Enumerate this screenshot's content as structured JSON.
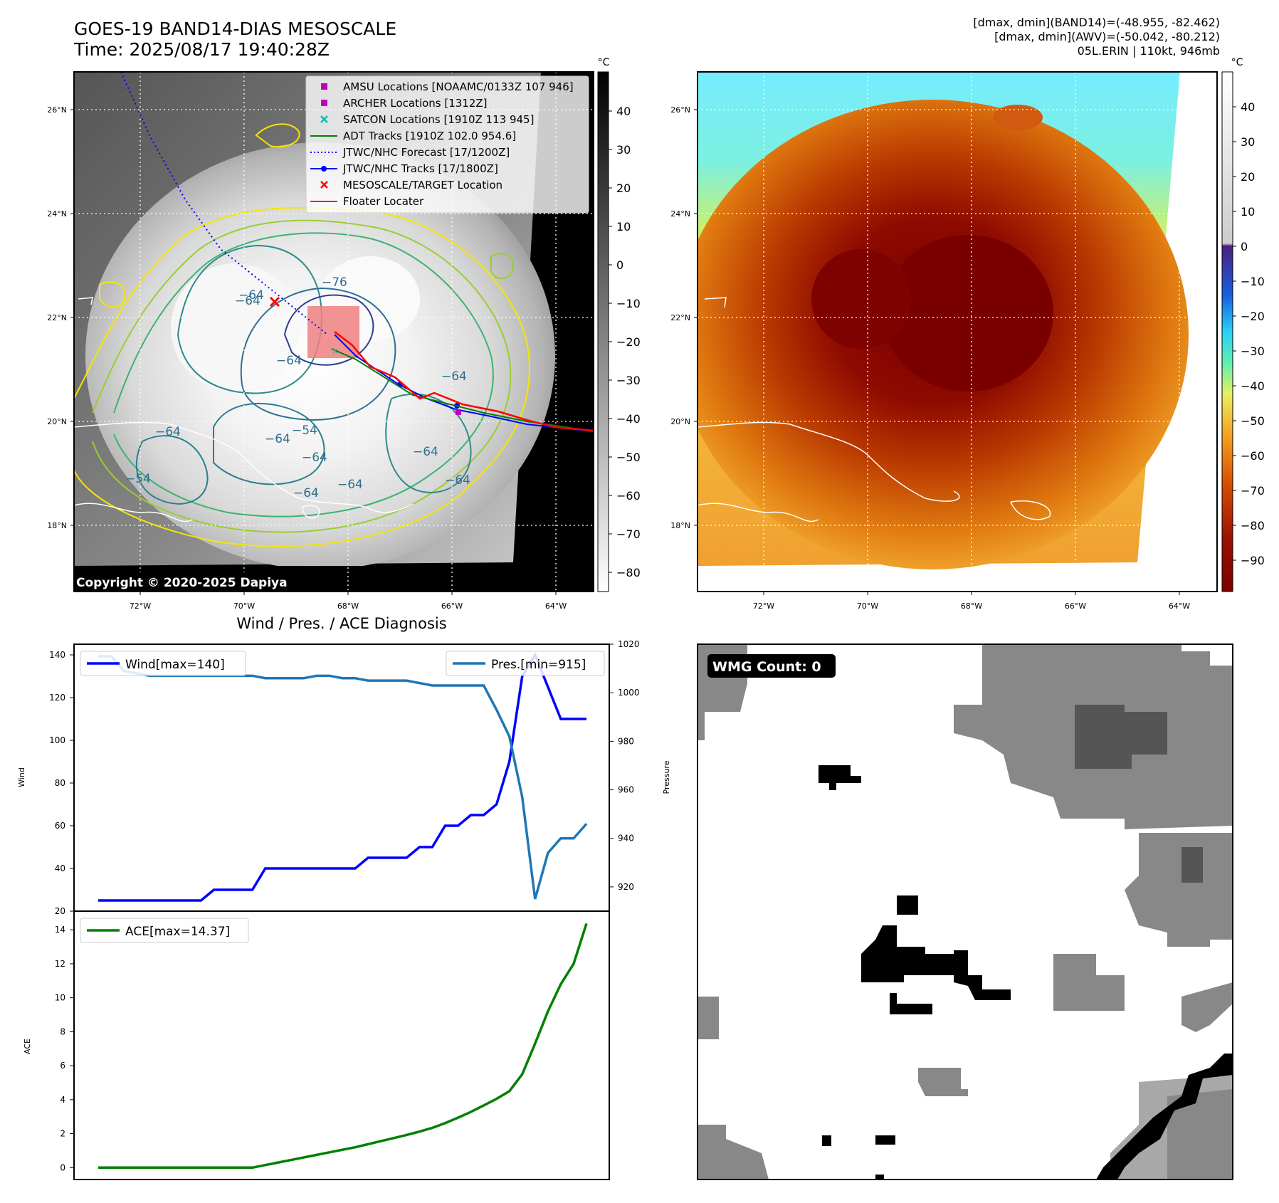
{
  "header": {
    "title_line1": "GOES-19 BAND14-DIAS MESOSCALE",
    "title_line2": "Time: 2025/08/17 19:40:28Z",
    "stat_band14": "[dmax, dmin](BAND14)=(-48.955, -82.462)",
    "stat_awv": "[dmax, dmin](AWV)=(-50.042, -80.212)",
    "storm_info": "05L.ERIN | 110kt, 946mb"
  },
  "ir_panel": {
    "copyright": "Copyright © 2020-2025 Dapiya",
    "colorbar_unit": "°C",
    "colorbar_ticks": [
      "40",
      "30",
      "20",
      "10",
      "0",
      "−10",
      "−20",
      "−30",
      "−40",
      "−50",
      "−60",
      "−70",
      "−80"
    ],
    "lat_labels": [
      "26°N",
      "24°N",
      "22°N",
      "20°N",
      "18°N"
    ],
    "lon_labels": [
      "72°W",
      "70°W",
      "68°W",
      "66°W",
      "64°W"
    ],
    "contour_labels": [
      "−76",
      "−64",
      "−64",
      "−64",
      "−64",
      "−64",
      "−54",
      "−64",
      "−64",
      "−64",
      "−54",
      "−64",
      "−64",
      "−64"
    ],
    "legend": [
      {
        "label": "AMSU Locations [NOAAMC/0133Z 107 946]",
        "marker": "square",
        "color": "#bf00bf"
      },
      {
        "label": "ARCHER Locations [1312Z]",
        "marker": "square",
        "color": "#bf00bf"
      },
      {
        "label": "SATCON Locations [1910Z 113 945]",
        "marker": "x",
        "color": "#00bfbf"
      },
      {
        "label": "ADT Tracks [1910Z 102.0 954.6]",
        "marker": "line",
        "color": "#008000"
      },
      {
        "label": "JTWC/NHC Forecast [17/1200Z]",
        "marker": "dotted",
        "color": "#0000ff"
      },
      {
        "label": "JTWC/NHC Tracks [17/1800Z]",
        "marker": "line-dot",
        "color": "#0000ff"
      },
      {
        "label": "MESOSCALE/TARGET Location",
        "marker": "x",
        "color": "#ff0000"
      },
      {
        "label": "Floater Locater",
        "marker": "line",
        "color": "#ff0000"
      }
    ]
  },
  "awv_panel": {
    "colorbar_unit": "°C",
    "colorbar_ticks": [
      "40",
      "30",
      "20",
      "10",
      "0",
      "−10",
      "−20",
      "−30",
      "−40",
      "−50",
      "−60",
      "−70",
      "−80",
      "−90"
    ],
    "lat_labels": [
      "26°N",
      "24°N",
      "22°N",
      "20°N",
      "18°N"
    ],
    "lon_labels": [
      "72°W",
      "70°W",
      "68°W",
      "66°W",
      "64°W"
    ]
  },
  "wmg_panel": {
    "badge": "WMG Count: 0"
  },
  "colors": {
    "wind": "#0000ff",
    "pressure": "#1f77b4",
    "ace": "#008000"
  },
  "chart_data": [
    {
      "type": "line",
      "title": "Wind / Pres. / ACE Diagnosis",
      "ylabel": "Wind",
      "ylabel_right": "Pressure",
      "ylim": [
        20,
        145
      ],
      "ylim_right": [
        910,
        1020
      ],
      "y_ticks": [
        "140",
        "120",
        "100",
        "80",
        "60",
        "40",
        "20"
      ],
      "y_ticks_right": [
        "1020",
        "1000",
        "980",
        "960",
        "940",
        "920"
      ],
      "x": [
        0,
        1,
        2,
        3,
        4,
        5,
        6,
        7,
        8,
        9,
        10,
        11,
        12,
        13,
        14,
        15,
        16,
        17,
        18,
        19,
        20,
        21,
        22,
        23,
        24,
        25,
        26,
        27,
        28,
        29,
        30,
        31,
        32,
        33,
        34,
        35,
        36,
        37,
        38
      ],
      "series": [
        {
          "name": "Wind[max=140]",
          "axis": "left",
          "values": [
            25,
            25,
            25,
            25,
            25,
            25,
            25,
            25,
            25,
            30,
            30,
            30,
            30,
            40,
            40,
            40,
            40,
            40,
            40,
            40,
            40,
            45,
            45,
            45,
            45,
            50,
            50,
            60,
            60,
            65,
            65,
            70,
            90,
            130,
            140,
            125,
            110,
            110,
            110
          ]
        },
        {
          "name": "Pres.[min=915]",
          "axis": "right",
          "values": [
            1015,
            1015,
            1009,
            1008,
            1007,
            1007,
            1007,
            1007,
            1007,
            1007,
            1007,
            1007,
            1007,
            1006,
            1006,
            1006,
            1006,
            1007,
            1007,
            1006,
            1006,
            1005,
            1005,
            1005,
            1005,
            1004,
            1003,
            1003,
            1003,
            1003,
            1003,
            993,
            982,
            957,
            915,
            934,
            940,
            940,
            946
          ]
        }
      ]
    },
    {
      "type": "line",
      "ylabel": "ACE",
      "ylim": [
        -0.7,
        15.1
      ],
      "y_ticks": [
        "14",
        "12",
        "10",
        "8",
        "6",
        "4",
        "2",
        "0"
      ],
      "x": [
        0,
        1,
        2,
        3,
        4,
        5,
        6,
        7,
        8,
        9,
        10,
        11,
        12,
        13,
        14,
        15,
        16,
        17,
        18,
        19,
        20,
        21,
        22,
        23,
        24,
        25,
        26,
        27,
        28,
        29,
        30,
        31,
        32,
        33,
        34,
        35,
        36,
        37,
        38
      ],
      "series": [
        {
          "name": "ACE[max=14.37]",
          "values": [
            0,
            0,
            0,
            0,
            0,
            0,
            0,
            0,
            0,
            0,
            0,
            0,
            0,
            0.15,
            0.3,
            0.45,
            0.6,
            0.75,
            0.9,
            1.05,
            1.2,
            1.38,
            1.56,
            1.74,
            1.92,
            2.12,
            2.34,
            2.62,
            2.94,
            3.28,
            3.66,
            4.05,
            4.5,
            5.5,
            7.3,
            9.2,
            10.8,
            12,
            14.37
          ]
        }
      ]
    }
  ]
}
